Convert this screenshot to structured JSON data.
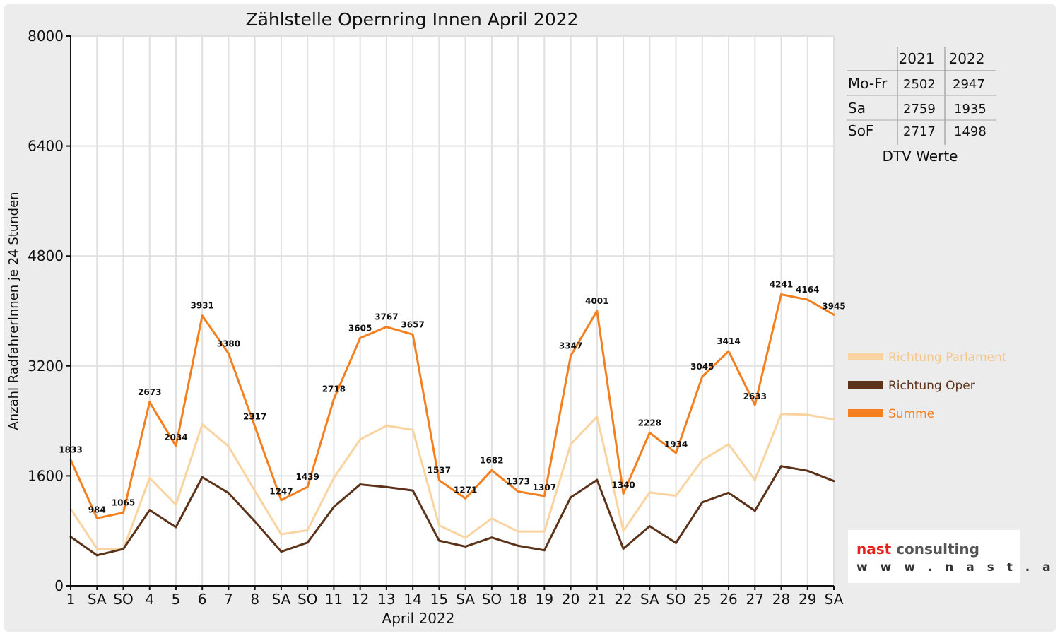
{
  "chart_data": {
    "type": "line",
    "title": "Zählstelle Opernring Innen April 2022",
    "xlabel": "April 2022",
    "ylabel": "Anzahl RadfahrerInnen je 24 Stunden",
    "ylim": [
      0,
      8000
    ],
    "yticks": [
      "0",
      "1600",
      "3200",
      "4800",
      "6400",
      "8000"
    ],
    "grid": true,
    "legend_position": "right",
    "categories": [
      "1",
      "SA",
      "SO",
      "4",
      "5",
      "6",
      "7",
      "8",
      "SA",
      "SO",
      "11",
      "12",
      "13",
      "14",
      "15",
      "SA",
      "SO",
      "18",
      "19",
      "20",
      "21",
      "22",
      "SA",
      "SO",
      "25",
      "26",
      "27",
      "28",
      "29",
      "SA"
    ],
    "holiday_flags": [
      false,
      false,
      true,
      false,
      false,
      false,
      false,
      false,
      false,
      true,
      false,
      false,
      false,
      false,
      false,
      false,
      true,
      true,
      false,
      false,
      false,
      false,
      false,
      true,
      false,
      false,
      false,
      false,
      false,
      false
    ],
    "series": [
      {
        "name": "Richtung Parlament",
        "color": "#fad4a0",
        "values": [
          1120,
          540,
          530,
          1570,
          1180,
          2350,
          2030,
          1380,
          750,
          810,
          1570,
          2130,
          2330,
          2270,
          880,
          700,
          980,
          790,
          790,
          2060,
          2460,
          800,
          1360,
          1310,
          1830,
          2060,
          1540,
          2500,
          2490,
          2420
        ]
      },
      {
        "name": "Richtung Oper",
        "color": "#5c3219",
        "values": [
          713,
          444,
          535,
          1103,
          854,
          1581,
          1350,
          937,
          497,
          629,
          1148,
          1475,
          1437,
          1387,
          657,
          571,
          702,
          583,
          517,
          1287,
          1541,
          540,
          868,
          624,
          1215,
          1354,
          1093,
          1741,
          1674,
          1525
        ]
      },
      {
        "name": "Summe",
        "color": "#f47f1f",
        "show_labels": true,
        "values": [
          1833,
          984,
          1065,
          2673,
          2034,
          3931,
          3380,
          2317,
          1247,
          1439,
          2718,
          3605,
          3767,
          3657,
          1537,
          1271,
          1682,
          1373,
          1307,
          3347,
          4001,
          1340,
          2228,
          1934,
          3045,
          3414,
          2633,
          4241,
          4164,
          3945
        ]
      }
    ]
  },
  "dtv_table": {
    "headers": [
      "2021",
      "2022"
    ],
    "rows": [
      {
        "label": "Mo-Fr",
        "v2021": "2502",
        "v2022": "2947"
      },
      {
        "label": "Sa",
        "v2021": "2759",
        "v2022": "1935"
      },
      {
        "label": "SoF",
        "v2021": "2717",
        "v2022": "1498"
      }
    ],
    "caption": "DTV Werte"
  },
  "logo": {
    "part1": "nast",
    "part2": " consulting",
    "url": "w w w . n a s t . a t",
    "part1_color": "#e8201c",
    "part2_color": "#555555"
  },
  "colors": {
    "holiday": "#e8201c",
    "axis": "#111111",
    "grid": "#e0e0e0"
  }
}
